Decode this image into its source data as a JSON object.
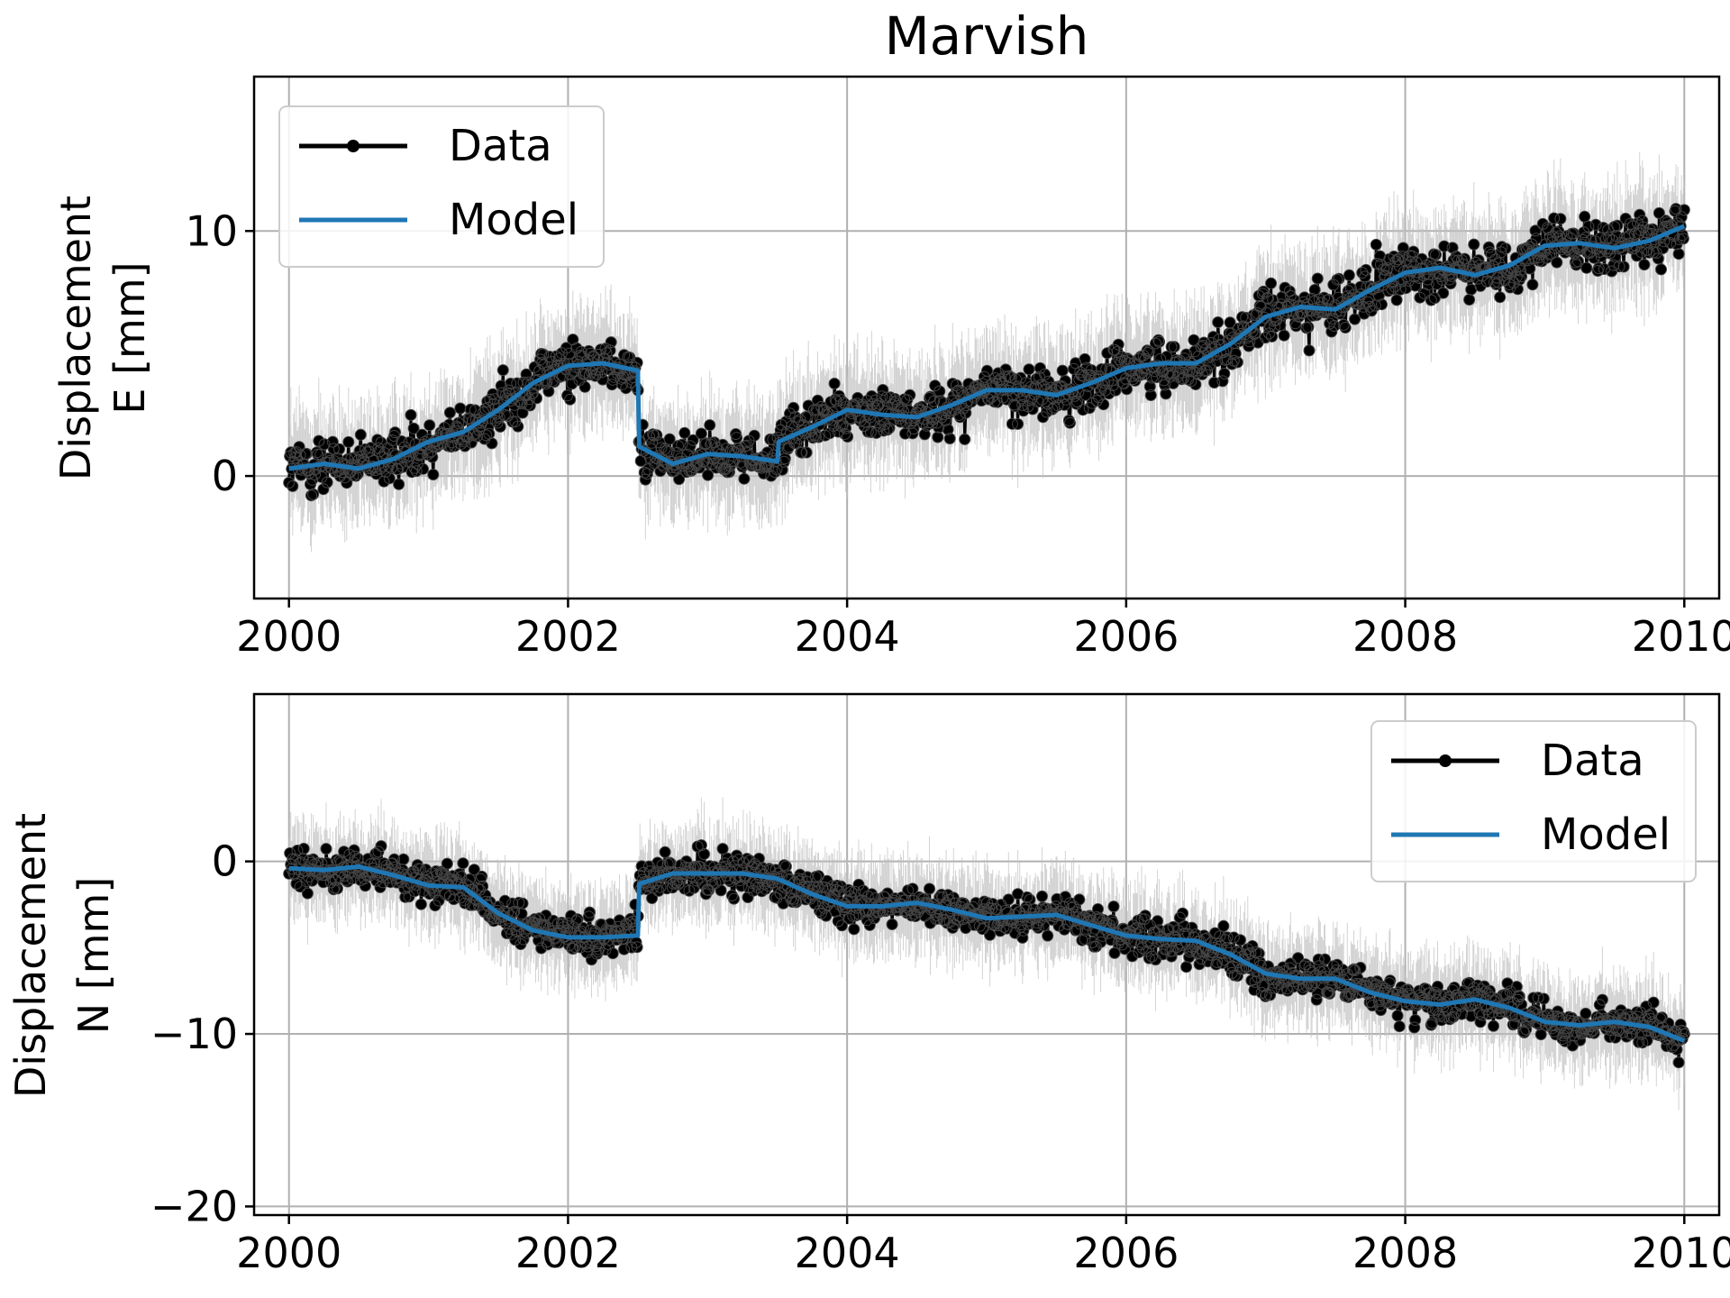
{
  "figure": {
    "title": "Marvish"
  },
  "chart_data": [
    {
      "type": "line",
      "panel": "top",
      "ylabel_lines": [
        "Displacement",
        "E [mm]"
      ],
      "xlim": [
        1999.75,
        2010.25
      ],
      "ylim": [
        -5,
        16.3
      ],
      "xticks": [
        2000,
        2002,
        2004,
        2006,
        2008,
        2010
      ],
      "xtick_labels": [
        "2000",
        "2002",
        "2004",
        "2006",
        "2008",
        "2010"
      ],
      "yticks": [
        0,
        10
      ],
      "ytick_labels": [
        "0",
        "10"
      ],
      "grid": true,
      "legend": {
        "position": "top-left",
        "entries": [
          {
            "label": "Data",
            "color": "#000000",
            "marker": "circle"
          },
          {
            "label": "Model",
            "color": "#1f77b4",
            "marker": "none"
          }
        ]
      },
      "series": [
        {
          "name": "Model",
          "color": "#1f77b4",
          "x": [
            2000.0,
            2000.25,
            2000.5,
            2000.75,
            2001.0,
            2001.25,
            2001.5,
            2001.75,
            2002.0,
            2002.25,
            2002.5,
            2002.51,
            2002.75,
            2003.0,
            2003.25,
            2003.5,
            2003.51,
            2003.75,
            2004.0,
            2004.25,
            2004.5,
            2004.75,
            2005.0,
            2005.25,
            2005.5,
            2005.75,
            2006.0,
            2006.25,
            2006.5,
            2006.75,
            2007.0,
            2007.25,
            2007.5,
            2007.75,
            2008.0,
            2008.25,
            2008.5,
            2008.75,
            2009.0,
            2009.25,
            2009.5,
            2009.75,
            2010.0
          ],
          "y": [
            0.3,
            0.5,
            0.3,
            0.7,
            1.4,
            1.8,
            2.7,
            3.8,
            4.5,
            4.6,
            4.3,
            1.2,
            0.5,
            0.9,
            0.8,
            0.6,
            1.4,
            2.0,
            2.7,
            2.5,
            2.4,
            2.9,
            3.5,
            3.5,
            3.3,
            3.8,
            4.4,
            4.6,
            4.6,
            5.4,
            6.5,
            6.9,
            6.8,
            7.6,
            8.3,
            8.5,
            8.2,
            8.6,
            9.4,
            9.5,
            9.3,
            9.6,
            10.2
          ]
        },
        {
          "name": "Data",
          "color": "#000000",
          "noise_mm": 0.75,
          "errorbar_mm": 1.9,
          "note_samples": "daily observations scattered about the model"
        }
      ]
    },
    {
      "type": "line",
      "panel": "bottom",
      "ylabel_lines": [
        "Displacement",
        "N [mm]"
      ],
      "xlim": [
        1999.75,
        2010.25
      ],
      "ylim": [
        -20.5,
        9.7
      ],
      "xticks": [
        2000,
        2002,
        2004,
        2006,
        2008,
        2010
      ],
      "xtick_labels": [
        "2000",
        "2002",
        "2004",
        "2006",
        "2008",
        "2010"
      ],
      "yticks": [
        0,
        -10,
        -20
      ],
      "ytick_labels": [
        "0",
        "−10",
        "−20"
      ],
      "grid": true,
      "legend": {
        "position": "top-right",
        "entries": [
          {
            "label": "Data",
            "color": "#000000",
            "marker": "circle"
          },
          {
            "label": "Model",
            "color": "#1f77b4",
            "marker": "none"
          }
        ]
      },
      "series": [
        {
          "name": "Model",
          "color": "#1f77b4",
          "x": [
            2000.0,
            2000.25,
            2000.5,
            2000.75,
            2001.0,
            2001.25,
            2001.5,
            2001.75,
            2002.0,
            2002.25,
            2002.5,
            2002.51,
            2002.75,
            2003.0,
            2003.25,
            2003.5,
            2003.75,
            2004.0,
            2004.25,
            2004.5,
            2004.75,
            2005.0,
            2005.25,
            2005.5,
            2005.75,
            2006.0,
            2006.25,
            2006.5,
            2006.75,
            2007.0,
            2007.25,
            2007.5,
            2007.75,
            2008.0,
            2008.25,
            2008.5,
            2008.75,
            2009.0,
            2009.25,
            2009.5,
            2009.75,
            2010.0
          ],
          "y": [
            -0.4,
            -0.5,
            -0.3,
            -0.8,
            -1.4,
            -1.5,
            -3.0,
            -4.0,
            -4.4,
            -4.4,
            -4.3,
            -1.3,
            -0.7,
            -0.7,
            -0.7,
            -1.0,
            -1.9,
            -2.6,
            -2.6,
            -2.4,
            -2.8,
            -3.3,
            -3.2,
            -3.1,
            -3.7,
            -4.3,
            -4.5,
            -4.6,
            -5.4,
            -6.5,
            -6.8,
            -6.8,
            -7.6,
            -8.1,
            -8.3,
            -8.0,
            -8.5,
            -9.3,
            -9.5,
            -9.3,
            -9.6,
            -10.4
          ]
        },
        {
          "name": "Data",
          "color": "#000000",
          "noise_mm": 0.8,
          "errorbar_mm": 2.2,
          "note_samples": "daily observations scattered about the model"
        }
      ]
    }
  ]
}
